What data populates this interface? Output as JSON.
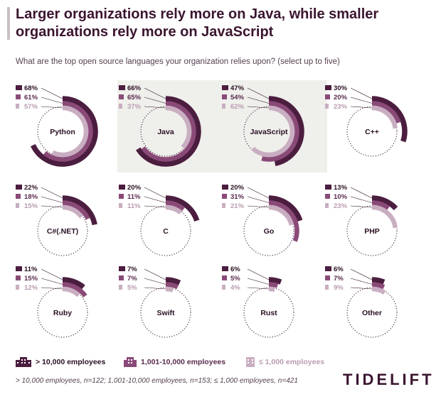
{
  "title": "Larger organizations rely more on Java, while smaller organizations rely more on JavaScript",
  "subtitle": "What are the top open source languages your organization relies upon? (select up to five)",
  "footnote": "> 10,000 employees, n=122; 1,001-10,000 employees, n=153; ≤ 1,000 employees, n=421",
  "logo": "TIDELIFT",
  "colors": {
    "large": "#4b1d3f",
    "medium": "#8a4a78",
    "small": "#c9aec1",
    "highlight": "#efefeb"
  },
  "chart_data": {
    "type": "radial-bar",
    "series": [
      {
        "name": "> 10,000 employees",
        "color": "#4b1d3f"
      },
      {
        "name": "1,001-10,000 employees",
        "color": "#8a4a78"
      },
      {
        "name": "≤ 1,000 employees",
        "color": "#c9aec1"
      }
    ],
    "languages": [
      {
        "name": "Python",
        "values": [
          68,
          61,
          57
        ],
        "labels": [
          "68%",
          "61%",
          "57%"
        ]
      },
      {
        "name": "Java",
        "values": [
          66,
          65,
          37
        ],
        "labels": [
          "66%",
          "65%",
          "37%"
        ],
        "highlight": true
      },
      {
        "name": "JavaScript",
        "values": [
          47,
          54,
          62
        ],
        "labels": [
          "47%",
          "54%",
          "62%"
        ],
        "highlight": true
      },
      {
        "name": "C++",
        "values": [
          30,
          20,
          23
        ],
        "labels": [
          "30%",
          "20%",
          "23%"
        ]
      },
      {
        "name": "C#(.NET)",
        "values": [
          22,
          18,
          15
        ],
        "labels": [
          "22%",
          "18%",
          "15%"
        ]
      },
      {
        "name": "C",
        "values": [
          20,
          11,
          11
        ],
        "labels": [
          "20%",
          "11%",
          "11%"
        ]
      },
      {
        "name": "Go",
        "values": [
          20,
          31,
          21
        ],
        "labels": [
          "20%",
          "31%",
          "21%"
        ]
      },
      {
        "name": "PHP",
        "values": [
          13,
          10,
          23
        ],
        "labels": [
          "13%",
          "10%",
          "23%"
        ]
      },
      {
        "name": "Ruby",
        "values": [
          11,
          15,
          12
        ],
        "labels": [
          "11%",
          "15%",
          "12%"
        ]
      },
      {
        "name": "Swift",
        "values": [
          7,
          7,
          5
        ],
        "labels": [
          "7%",
          "7%",
          "5%"
        ]
      },
      {
        "name": "Rust",
        "values": [
          6,
          5,
          4
        ],
        "labels": [
          "6%",
          "5%",
          "4%"
        ]
      },
      {
        "name": "Other",
        "values": [
          6,
          7,
          9
        ],
        "labels": [
          "6%",
          "7%",
          "9%"
        ]
      }
    ]
  }
}
